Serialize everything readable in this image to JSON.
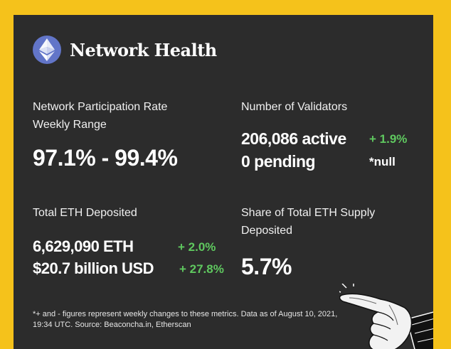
{
  "header": {
    "title": "Network Health",
    "logo_icon": "ethereum-diamond-icon"
  },
  "participation": {
    "label_line1": "Network Participation Rate",
    "label_line2": "Weekly Range",
    "value": "97.1% - 99.4%"
  },
  "validators": {
    "label": "Number of Validators",
    "active": "206,086 active",
    "active_change": "+ 1.9%",
    "pending": "0 pending",
    "pending_change": "*null"
  },
  "deposited": {
    "label": "Total ETH Deposited",
    "eth_value": "6,629,090 ETH",
    "eth_change": "+ 2.0%",
    "usd_value": "$20.7 billion USD",
    "usd_change": "+ 27.8%"
  },
  "share": {
    "label_line1": "Share of Total ETH Supply",
    "label_line2": "Deposited",
    "value": "5.7%"
  },
  "footnote": "*+ and - figures represent weekly changes to these metrics. Data as of August 10, 2021, 19:34 UTC. Source: Beaconcha.in, Etherscan",
  "colors": {
    "background": "#f5c21b",
    "card": "#2c2c2c",
    "positive": "#5fc85f",
    "logo": "#6275c8"
  },
  "decoration": {
    "icon": "pointing-hand-icon"
  }
}
